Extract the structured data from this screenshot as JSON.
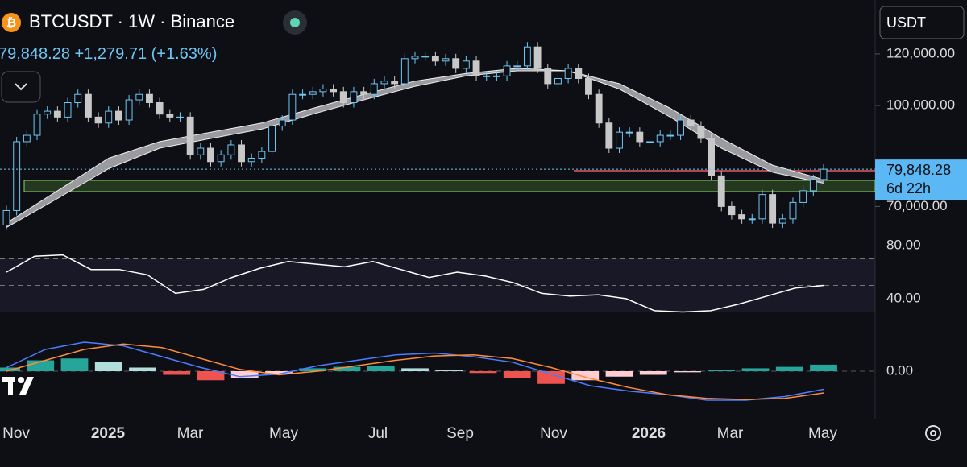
{
  "header": {
    "symbol": "BTCUSDT · 1W · Binance",
    "price": "79,848.28",
    "change": "+1,279.71",
    "change_pct": "(+1.63%)",
    "currency": "USDT"
  },
  "chart_data": {
    "type": "candlestick",
    "closes": [
      69000,
      88000,
      90000,
      97000,
      98000,
      96000,
      101000,
      104000,
      96000,
      94000,
      98000,
      95000,
      102000,
      104000,
      101000,
      97000,
      96000,
      96000,
      84000,
      86000,
      82000,
      84000,
      87000,
      82000,
      83000,
      85000,
      93000,
      95000,
      104000,
      104000,
      105000,
      106000,
      105000,
      101000,
      105000,
      104000,
      108000,
      109000,
      108000,
      118000,
      119000,
      119000,
      117000,
      118000,
      114000,
      117000,
      111000,
      111000,
      111000,
      115000,
      115000,
      123000,
      114000,
      108000,
      110000,
      114000,
      110000,
      104000,
      94000,
      86000,
      91000,
      91000,
      88000,
      88000,
      90000,
      90000,
      95000,
      93000,
      89000,
      78000,
      70000,
      68000,
      67000,
      67000,
      73000,
      66000,
      67000,
      71000,
      74000,
      77000,
      79848.28
    ],
    "log_scale": true,
    "yticks": [
      {
        "value": 120000,
        "label": "120,000.00"
      },
      {
        "value": 100000,
        "label": "100,000.00"
      },
      {
        "value": 70000,
        "label": "70,000.00"
      }
    ],
    "last_price": {
      "value": 79848.28,
      "label": "79,848.28"
    },
    "countdown": "6d 22h",
    "x_labels": [
      "Nov",
      "2025",
      "Mar",
      "May",
      "Jul",
      "Sep",
      "Nov",
      "2026",
      "Mar",
      "May"
    ],
    "ma_fast": [
      66000,
      74000,
      83000,
      88000,
      91000,
      94000,
      99000,
      104000,
      109000,
      112000,
      114000,
      113000,
      106000,
      96000,
      86000,
      79000,
      76000
    ],
    "ma_slow": [
      65000,
      72000,
      80000,
      86000,
      89000,
      92000,
      97000,
      102000,
      107000,
      111000,
      113000,
      113000,
      108000,
      99000,
      89000,
      81000,
      77000
    ],
    "rsi": {
      "values": [
        60,
        72,
        73,
        62,
        62,
        58,
        44,
        47,
        56,
        63,
        68,
        66,
        64,
        68,
        62,
        56,
        60,
        57,
        52,
        44,
        42,
        43,
        40,
        31,
        30,
        31,
        36,
        42,
        48,
        50
      ],
      "yticks": [
        {
          "value": 80,
          "label": "80.00"
        },
        {
          "value": 40,
          "label": "40.00"
        }
      ],
      "bands": [
        70,
        50,
        30
      ]
    },
    "macd": {
      "line": [
        1000,
        6000,
        8000,
        7000,
        4000,
        1000,
        -1500,
        -800,
        1500,
        3000,
        4500,
        5000,
        4000,
        2500,
        -800,
        -4000,
        -5500,
        -6500,
        -8000,
        -8000,
        -7000,
        -5000
      ],
      "signal": [
        0,
        3000,
        6000,
        7500,
        6500,
        3500,
        500,
        -1000,
        0,
        1500,
        3000,
        4200,
        4500,
        3500,
        1000,
        -2000,
        -4500,
        -6500,
        -7500,
        -7800,
        -7500,
        -6000
      ],
      "hist": [
        1000,
        3000,
        3500,
        2500,
        1000,
        -1000,
        -2500,
        -2000,
        -800,
        800,
        1200,
        1500,
        800,
        400,
        -500,
        -2000,
        -3500,
        -2500,
        -1500,
        -1000,
        -300,
        300,
        800,
        1200,
        1800
      ],
      "yticks": [
        {
          "value": 0,
          "label": "0.00"
        }
      ]
    }
  }
}
